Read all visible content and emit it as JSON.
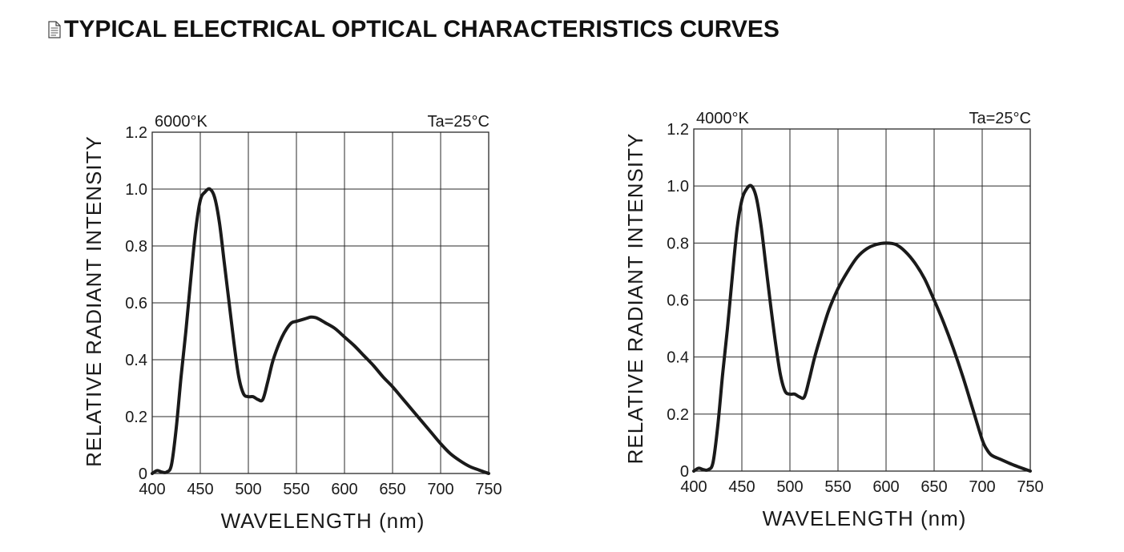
{
  "heading": {
    "icon": "document-icon",
    "text": "TYPICAL ELECTRICAL OPTICAL CHARACTERISTICS CURVES"
  },
  "colors": {
    "curve": "#1a1a1a",
    "grid": "#2a2a2a",
    "background": "#ffffff"
  },
  "chart_data": [
    {
      "type": "line",
      "color_temperature_label": "6000°K",
      "condition_label": "Ta=25°C",
      "xlabel": "WAVELENGTH (nm)",
      "ylabel": "RELATIVE RADIANT INTENSITY",
      "xlim": [
        400,
        750
      ],
      "ylim": [
        0,
        1.2
      ],
      "xticks": [
        "400",
        "450",
        "500",
        "550",
        "600",
        "650",
        "700",
        "750"
      ],
      "yticks": [
        "0",
        "0.2",
        "0.4",
        "0.6",
        "0.8",
        "1.0",
        "1.2"
      ],
      "grid": true,
      "series": [
        {
          "x": [
            400,
            405,
            410,
            415,
            420,
            425,
            430,
            435,
            440,
            445,
            450,
            455,
            460,
            465,
            470,
            475,
            480,
            485,
            490,
            495,
            500,
            505,
            510,
            515,
            520,
            525,
            530,
            535,
            540,
            545,
            550,
            555,
            560,
            565,
            570,
            575,
            580,
            590,
            600,
            610,
            620,
            630,
            640,
            650,
            660,
            670,
            680,
            690,
            700,
            710,
            720,
            730,
            740,
            750
          ],
          "y": [
            0.0,
            0.01,
            0.005,
            0.005,
            0.03,
            0.16,
            0.34,
            0.5,
            0.68,
            0.85,
            0.96,
            0.99,
            1.0,
            0.97,
            0.88,
            0.74,
            0.6,
            0.46,
            0.34,
            0.28,
            0.27,
            0.27,
            0.26,
            0.26,
            0.32,
            0.39,
            0.44,
            0.48,
            0.51,
            0.53,
            0.535,
            0.54,
            0.545,
            0.55,
            0.548,
            0.54,
            0.53,
            0.51,
            0.48,
            0.45,
            0.415,
            0.38,
            0.34,
            0.305,
            0.265,
            0.225,
            0.185,
            0.145,
            0.105,
            0.07,
            0.045,
            0.025,
            0.012,
            0.0
          ]
        }
      ]
    },
    {
      "type": "line",
      "color_temperature_label": "4000°K",
      "condition_label": "Ta=25°C",
      "xlabel": "WAVELENGTH (nm)",
      "ylabel": "RELATIVE RADIANT INTENSITY",
      "xlim": [
        400,
        750
      ],
      "ylim": [
        0,
        1.2
      ],
      "xticks": [
        "400",
        "450",
        "500",
        "550",
        "600",
        "650",
        "700",
        "750"
      ],
      "yticks": [
        "0",
        "0.2",
        "0.4",
        "0.6",
        "0.8",
        "1.0",
        "1.2"
      ],
      "grid": true,
      "series": [
        {
          "x": [
            400,
            405,
            410,
            415,
            420,
            425,
            430,
            435,
            440,
            445,
            450,
            455,
            460,
            465,
            470,
            475,
            480,
            485,
            490,
            495,
            500,
            505,
            510,
            515,
            520,
            525,
            530,
            540,
            550,
            560,
            570,
            580,
            590,
            600,
            610,
            620,
            630,
            640,
            650,
            660,
            670,
            680,
            690,
            700,
            705,
            710,
            720,
            730,
            740,
            750
          ],
          "y": [
            0.0,
            0.01,
            0.005,
            0.005,
            0.03,
            0.16,
            0.34,
            0.5,
            0.68,
            0.85,
            0.95,
            0.99,
            1.0,
            0.96,
            0.86,
            0.72,
            0.58,
            0.45,
            0.34,
            0.28,
            0.27,
            0.27,
            0.26,
            0.26,
            0.32,
            0.39,
            0.45,
            0.56,
            0.64,
            0.7,
            0.75,
            0.78,
            0.795,
            0.8,
            0.795,
            0.77,
            0.73,
            0.675,
            0.6,
            0.52,
            0.43,
            0.33,
            0.22,
            0.11,
            0.075,
            0.055,
            0.04,
            0.025,
            0.012,
            0.0
          ]
        }
      ]
    }
  ]
}
